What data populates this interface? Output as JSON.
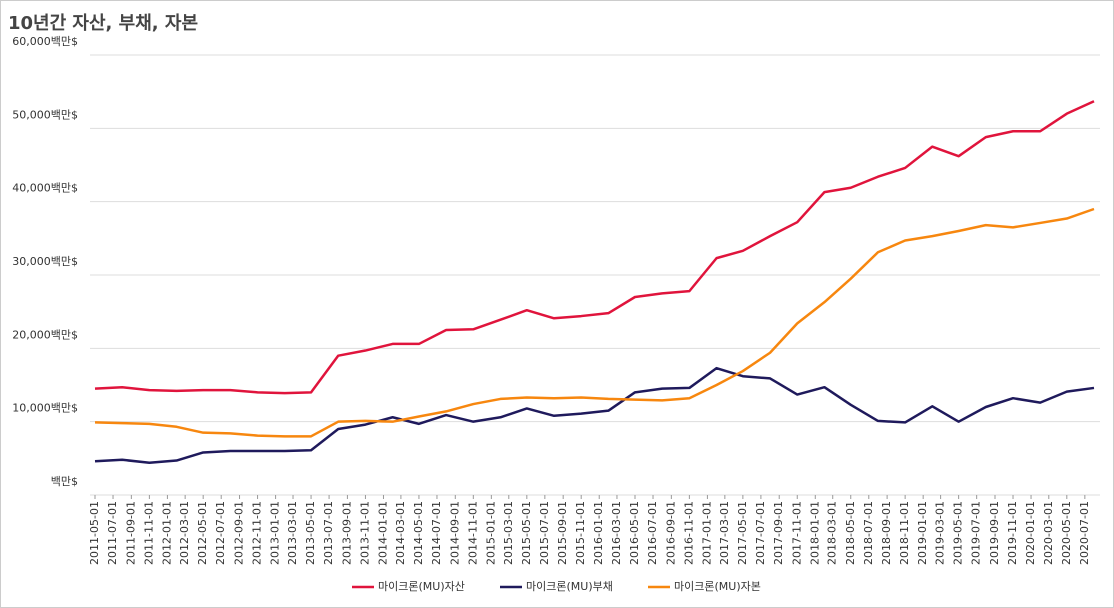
{
  "chart_data": {
    "type": "line",
    "title": "10년간 자산, 부채, 자본",
    "x": [
      "2011-05-01",
      "2011-08-01",
      "2011-11-01",
      "2012-02-01",
      "2012-05-01",
      "2012-08-01",
      "2012-11-01",
      "2013-02-01",
      "2013-05-01",
      "2013-08-01",
      "2013-11-01",
      "2014-02-01",
      "2014-05-01",
      "2014-08-01",
      "2014-11-01",
      "2015-02-01",
      "2015-05-01",
      "2015-08-01",
      "2015-11-01",
      "2016-02-01",
      "2016-05-01",
      "2016-08-01",
      "2016-11-01",
      "2017-02-01",
      "2017-05-01",
      "2017-08-01",
      "2017-11-01",
      "2018-02-01",
      "2018-05-01",
      "2018-08-01",
      "2018-11-01",
      "2019-02-01",
      "2019-05-01",
      "2019-08-01",
      "2019-11-01",
      "2020-02-01",
      "2020-05-01",
      "2020-08-01"
    ],
    "xlim": [
      "2011-05-01",
      "2020-08-01"
    ],
    "xticks": [
      "2011-05-01",
      "2011-07-01",
      "2011-09-01",
      "2011-11-01",
      "2012-01-01",
      "2012-03-01",
      "2012-05-01",
      "2012-07-01",
      "2012-09-01",
      "2012-11-01",
      "2013-01-01",
      "2013-03-01",
      "2013-05-01",
      "2013-07-01",
      "2013-09-01",
      "2013-11-01",
      "2014-01-01",
      "2014-03-01",
      "2014-05-01",
      "2014-07-01",
      "2014-09-01",
      "2014-11-01",
      "2015-01-01",
      "2015-03-01",
      "2015-05-01",
      "2015-07-01",
      "2015-09-01",
      "2015-11-01",
      "2016-01-01",
      "2016-03-01",
      "2016-05-01",
      "2016-07-01",
      "2016-09-01",
      "2016-11-01",
      "2017-01-01",
      "2017-03-01",
      "2017-05-01",
      "2017-07-01",
      "2017-09-01",
      "2017-11-01",
      "2018-01-01",
      "2018-03-01",
      "2018-05-01",
      "2018-07-01",
      "2018-09-01",
      "2018-11-01",
      "2019-01-01",
      "2019-03-01",
      "2019-05-01",
      "2019-07-01",
      "2019-09-01",
      "2019-11-01",
      "2020-01-01",
      "2020-03-01",
      "2020-05-01",
      "2020-07-01"
    ],
    "ylim": [
      0,
      60000
    ],
    "yticks": [
      {
        "value": 0,
        "label": "백만$"
      },
      {
        "value": 10000,
        "label": "10,000백만$"
      },
      {
        "value": 20000,
        "label": "20,000백만$"
      },
      {
        "value": 30000,
        "label": "30,000백만$"
      },
      {
        "value": 40000,
        "label": "40,000백만$"
      },
      {
        "value": 50000,
        "label": "50,000백만$"
      },
      {
        "value": 60000,
        "label": "60,000백만$"
      }
    ],
    "grid": true,
    "legend": "bottom",
    "series": [
      {
        "name": "마이크론(MU)자산",
        "color": "#e0143c",
        "values": [
          14500,
          14700,
          14300,
          14200,
          14300,
          14300,
          14000,
          13900,
          14000,
          19000,
          19700,
          20600,
          20600,
          22500,
          22600,
          23900,
          25200,
          24100,
          24400,
          24800,
          27000,
          27500,
          27800,
          32300,
          33300,
          35300,
          37200,
          41300,
          41900,
          43400,
          44600,
          47500,
          46200,
          48800,
          49600,
          49600,
          52000,
          53700
        ]
      },
      {
        "name": "마이크론(MU)부채",
        "color": "#1f1a5c",
        "values": [
          4600,
          4800,
          4400,
          4700,
          5800,
          6000,
          6000,
          6000,
          6100,
          9000,
          9600,
          10600,
          9700,
          10900,
          10000,
          10600,
          11800,
          10800,
          11100,
          11500,
          14000,
          14500,
          14600,
          17300,
          16200,
          15900,
          13700,
          14700,
          12300,
          10100,
          9900,
          12100,
          10000,
          12000,
          13200,
          12600,
          14100,
          14600
        ]
      },
      {
        "name": "마이크론(MU)자본",
        "color": "#f7870f",
        "values": [
          9900,
          9800,
          9700,
          9300,
          8500,
          8400,
          8100,
          8000,
          8000,
          10000,
          10100,
          10000,
          10700,
          11400,
          12400,
          13100,
          13300,
          13200,
          13300,
          13100,
          13000,
          12900,
          13200,
          15000,
          16900,
          19400,
          23400,
          26300,
          29500,
          33100,
          34700,
          35300,
          36000,
          36800,
          36500,
          37100,
          37700,
          39000
        ]
      }
    ]
  }
}
